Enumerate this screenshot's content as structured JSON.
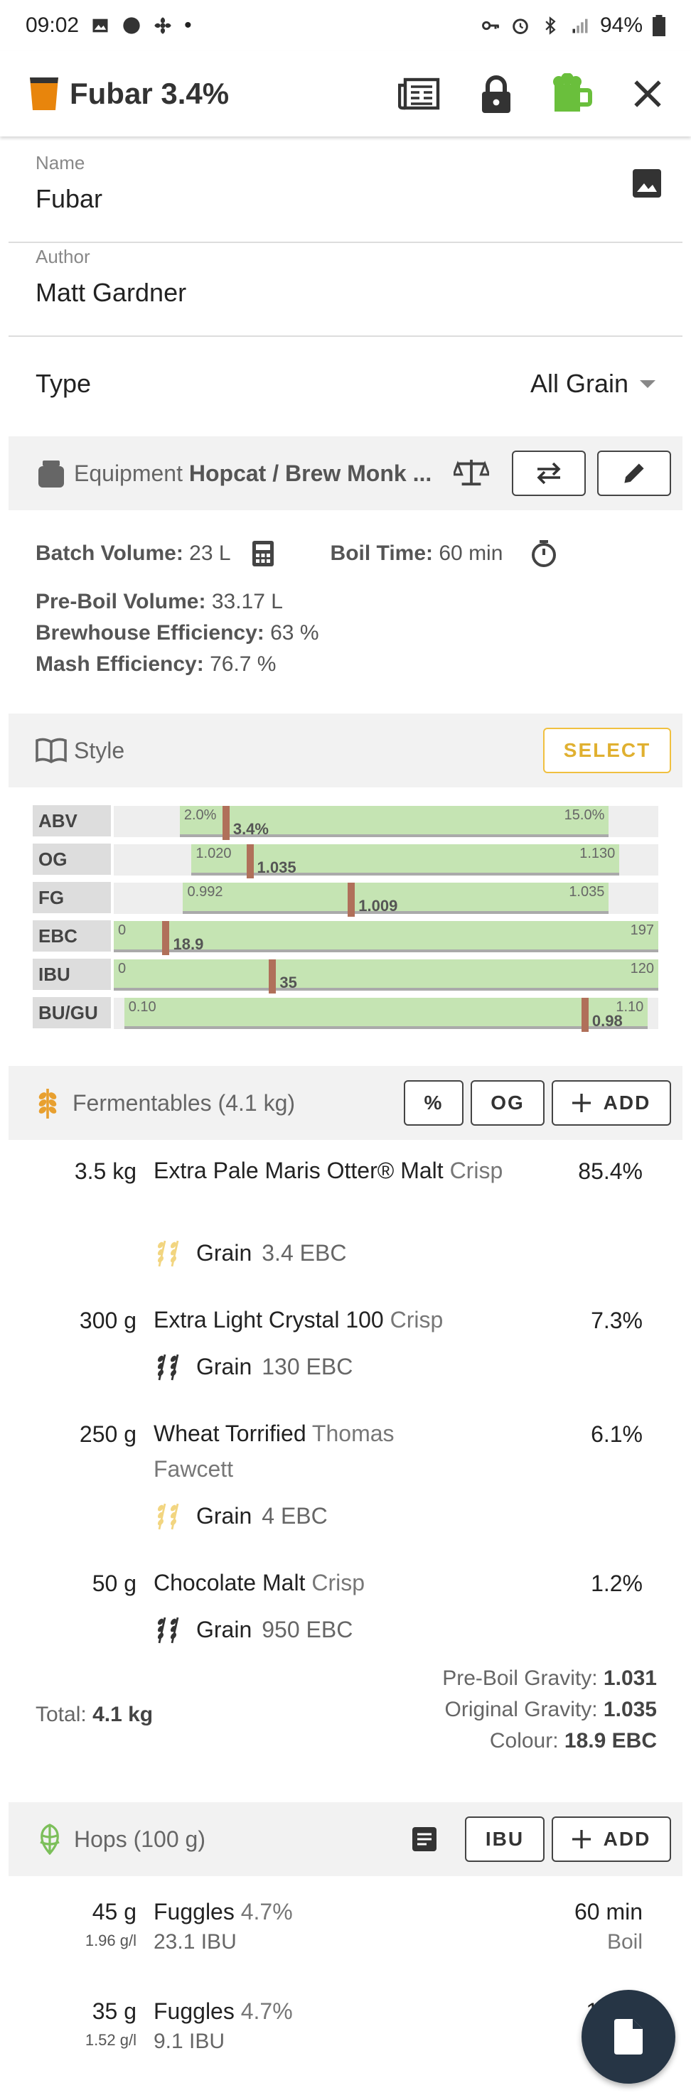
{
  "status": {
    "time": "09:02",
    "battery": "94%"
  },
  "appbar": {
    "title": "Fubar 3.4%"
  },
  "recipe": {
    "name_label": "Name",
    "name": "Fubar",
    "author_label": "Author",
    "author": "Matt Gardner",
    "type_label": "Type",
    "type": "All Grain"
  },
  "equipment": {
    "label": "Equipment",
    "name": "Hopcat / Brew Monk ...",
    "batch_label": "Batch Volume:",
    "batch": "23 L",
    "boil_label": "Boil Time:",
    "boil": "60 min",
    "preboil_label": "Pre-Boil Volume:",
    "preboil": "33.17 L",
    "bh_eff_label": "Brewhouse Efficiency:",
    "bh_eff": "63 %",
    "mash_eff_label": "Mash Efficiency:",
    "mash_eff": "76.7 %"
  },
  "style": {
    "label": "Style",
    "select_label": "SELECT",
    "rows": [
      {
        "label": "ABV",
        "min_label": "2.0%",
        "max_label": "15.0%",
        "value_label": "3.4%",
        "min": 2.0,
        "max": 15.0,
        "value": 3.4,
        "scale_min": 0,
        "scale_max": 16.5
      },
      {
        "label": "OG",
        "min_label": "1.020",
        "max_label": "1.130",
        "value_label": "1.035",
        "min": 1.02,
        "max": 1.13,
        "value": 1.035,
        "scale_min": 1.0,
        "scale_max": 1.14
      },
      {
        "label": "FG",
        "min_label": "0.992",
        "max_label": "1.035",
        "value_label": "1.009",
        "min": 0.992,
        "max": 1.035,
        "value": 1.009,
        "scale_min": 0.985,
        "scale_max": 1.04
      },
      {
        "label": "EBC",
        "min_label": "0",
        "max_label": "197",
        "value_label": "18.9",
        "min": 0,
        "max": 197,
        "value": 18.9,
        "scale_min": 0,
        "scale_max": 197
      },
      {
        "label": "IBU",
        "min_label": "0",
        "max_label": "120",
        "value_label": "35",
        "min": 0,
        "max": 120,
        "value": 35,
        "scale_min": 0,
        "scale_max": 120
      },
      {
        "label": "BU/GU",
        "min_label": "0.10",
        "max_label": "1.10",
        "value_label": "0.98",
        "min": 0.1,
        "max": 1.1,
        "value": 0.98,
        "scale_min": 0.08,
        "scale_max": 1.12
      }
    ]
  },
  "fermentables": {
    "label": "Fermentables (4.1 kg)",
    "pct_button": "%",
    "og_button": "OG",
    "add_button": "ADD",
    "items": [
      {
        "qty": "3.5 kg",
        "name": "Extra Pale Maris Otter® Malt",
        "supplier": "Crisp",
        "pct": "85.4%",
        "kind": "Grain",
        "ebc": "3.4 EBC"
      },
      {
        "qty": "300 g",
        "name": "Extra Light Crystal 100",
        "supplier": "Crisp",
        "pct": "7.3%",
        "kind": "Grain",
        "ebc": "130 EBC"
      },
      {
        "qty": "250 g",
        "name": "Wheat Torrified",
        "supplier": "Thomas Fawcett",
        "pct": "6.1%",
        "kind": "Grain",
        "ebc": "4 EBC"
      },
      {
        "qty": "50 g",
        "name": "Chocolate Malt",
        "supplier": "Crisp",
        "pct": "1.2%",
        "kind": "Grain",
        "ebc": "950 EBC"
      }
    ],
    "total_label": "Total:",
    "total": "4.1 kg",
    "preboil_gravity_label": "Pre-Boil Gravity:",
    "preboil_gravity": "1.031",
    "og_label": "Original Gravity:",
    "og": "1.035",
    "colour_label": "Colour:",
    "colour": "18.9 EBC"
  },
  "hops": {
    "label": "Hops (100 g)",
    "ibu_button": "IBU",
    "add_button": "ADD",
    "items": [
      {
        "qty": "45 g",
        "rate": "1.96 g/l",
        "name": "Fuggles",
        "alpha": "4.7%",
        "ibu": "23.1 IBU",
        "time": "60 min",
        "use": "Boil"
      },
      {
        "qty": "35 g",
        "rate": "1.52 g/l",
        "name": "Fuggles",
        "alpha": "4.7%",
        "ibu": "9.1 IBU",
        "time": "10",
        "use": ""
      }
    ]
  },
  "colors": {
    "accent": "#f0c040",
    "range": "#c5e4b3",
    "marker": "#b0705a",
    "fab": "#263545"
  }
}
